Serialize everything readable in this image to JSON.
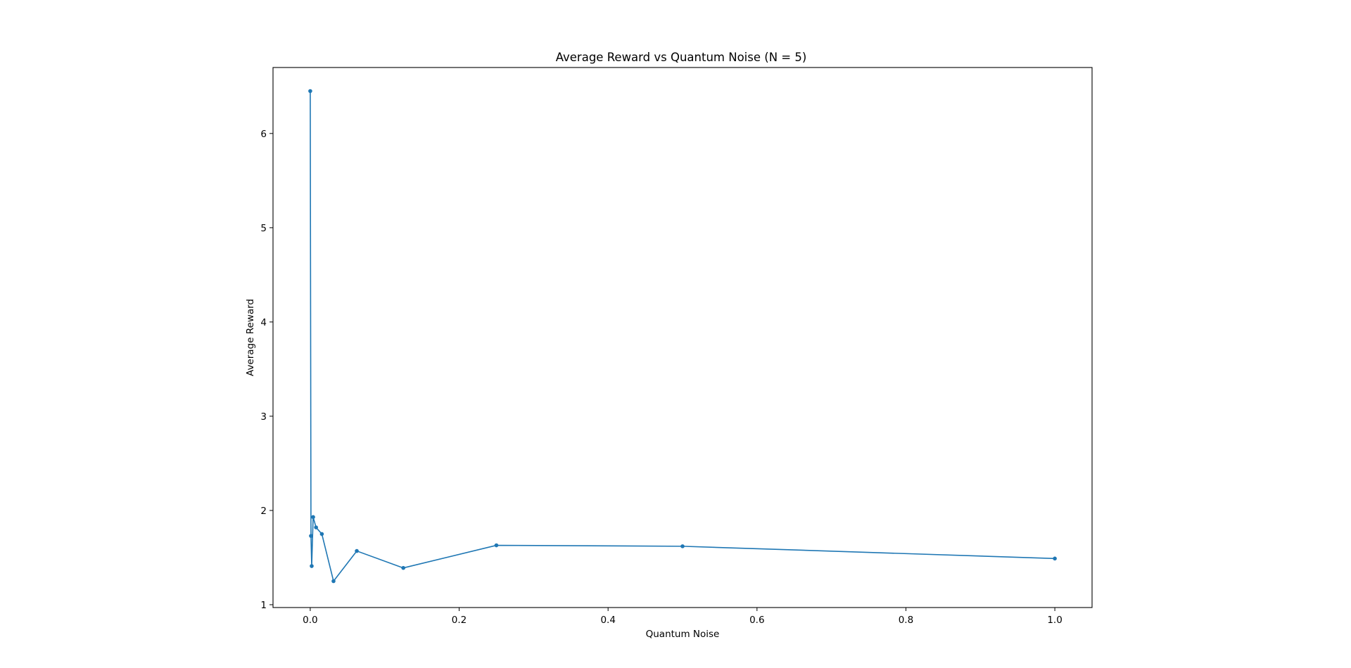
{
  "chart_data": {
    "type": "line",
    "title": "Average Reward vs Quantum Noise (N = 5)",
    "xlabel": "Quantum Noise",
    "ylabel": "Average Reward",
    "xlim": [
      -0.05,
      1.05
    ],
    "ylim": [
      0.97,
      6.7
    ],
    "xticks": [
      0.0,
      0.2,
      0.4,
      0.6,
      0.8,
      1.0
    ],
    "xtick_labels": [
      "0.0",
      "0.2",
      "0.4",
      "0.6",
      "0.8",
      "1.0"
    ],
    "yticks": [
      1,
      2,
      3,
      4,
      5,
      6
    ],
    "ytick_labels": [
      "1",
      "2",
      "3",
      "4",
      "5",
      "6"
    ],
    "grid": false,
    "legend": "none",
    "marker": "circle",
    "line_color": "#1f77b4",
    "series": [
      {
        "x": [
          0.0,
          0.000977,
          0.00195,
          0.0039,
          0.0078,
          0.0156,
          0.03125,
          0.0625,
          0.125,
          0.25,
          0.5,
          1.0
        ],
        "y": [
          6.45,
          1.73,
          1.41,
          1.93,
          1.82,
          1.75,
          1.25,
          1.57,
          1.39,
          1.63,
          1.62,
          1.49
        ]
      }
    ]
  }
}
